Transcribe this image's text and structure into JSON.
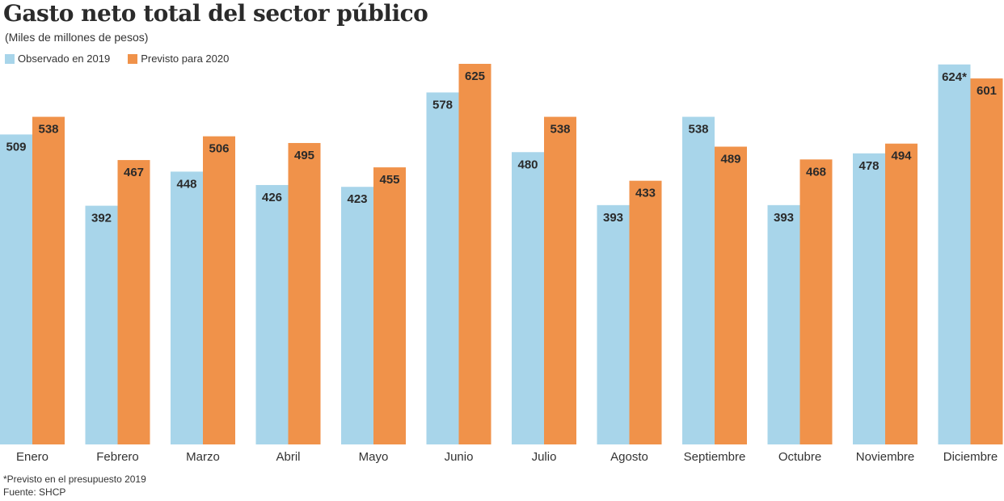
{
  "title": "Gasto neto total del sector público",
  "subtitle": "(Miles de millones de pesos)",
  "legend": [
    {
      "label": "Observado en 2019",
      "color": "#a8d5ea"
    },
    {
      "label": "Previsto para 2020",
      "color": "#f0924a"
    }
  ],
  "footnote": "*Previsto en el presupuesto 2019",
  "source": "Fuente: SHCP",
  "chart_data": {
    "type": "bar",
    "categories": [
      "Enero",
      "Febrero",
      "Marzo",
      "Abril",
      "Mayo",
      "Junio",
      "Julio",
      "Agosto",
      "Septiembre",
      "Octubre",
      "Noviembre",
      "Diciembre"
    ],
    "series": [
      {
        "name": "Observado en 2019",
        "color": "#a8d5ea",
        "values": [
          509,
          392,
          448,
          426,
          423,
          578,
          480,
          393,
          538,
          393,
          478,
          624
        ],
        "labels": [
          "509",
          "392",
          "448",
          "426",
          "423",
          "578",
          "480",
          "393",
          "538",
          "393",
          "478",
          "624*"
        ]
      },
      {
        "name": "Previsto para 2020",
        "color": "#f0924a",
        "values": [
          538,
          467,
          506,
          495,
          455,
          625,
          538,
          433,
          489,
          468,
          494,
          601
        ],
        "labels": [
          "538",
          "467",
          "506",
          "495",
          "455",
          "625",
          "538",
          "433",
          "489",
          "468",
          "494",
          "601"
        ]
      }
    ],
    "ylim": [
      0,
      625
    ],
    "grid": false,
    "legend_position": "top-left"
  }
}
